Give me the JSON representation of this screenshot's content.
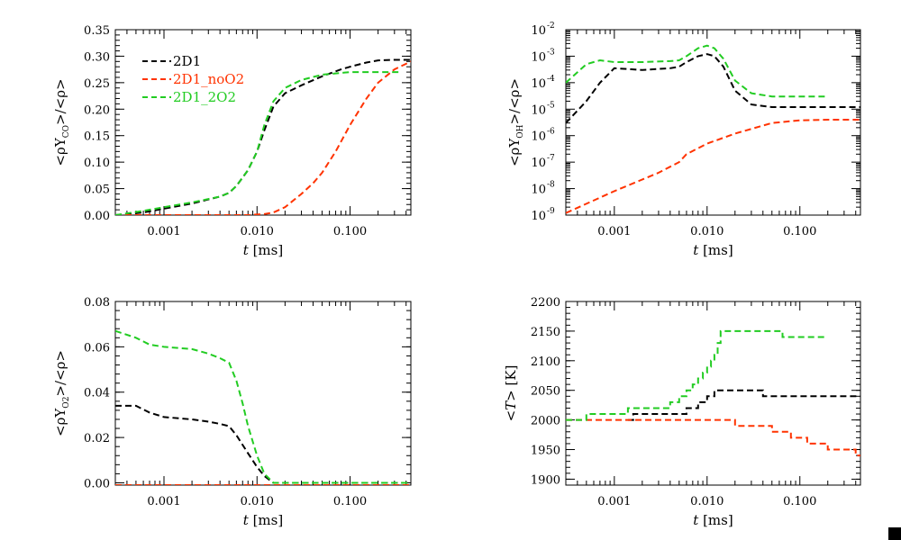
{
  "colors": {
    "2D1": "#000000",
    "2D1_noO2": "#ff3300",
    "2D1_2O2": "#22cc22"
  },
  "chart_data": [
    {
      "type": "line",
      "id": "CO",
      "xscale": "log",
      "yscale": "linear",
      "xlim": [
        0.0003,
        0.45
      ],
      "ylim": [
        0.0,
        0.35
      ],
      "xticks": [
        0.001,
        0.01,
        0.1
      ],
      "xtick_labels": [
        "0.001",
        "0.010",
        "0.100"
      ],
      "yticks": [
        0.0,
        0.05,
        0.1,
        0.15,
        0.2,
        0.25,
        0.3,
        0.35
      ],
      "ytick_labels": [
        "0.00",
        "0.05",
        "0.10",
        "0.15",
        "0.20",
        "0.25",
        "0.30",
        "0.35"
      ],
      "xlabel": {
        "italic": "t",
        "rest": " [ms]"
      },
      "ylabel": {
        "pre": "<ρY",
        "sub": "CO",
        "post": ">/<ρ>"
      },
      "legend": {
        "position": "top-left",
        "entries": [
          "2D1",
          "2D1_noO2",
          "2D1_2O2"
        ]
      },
      "series": [
        {
          "name": "2D1",
          "color": "#000000",
          "x": [
            0.0003,
            0.0006,
            0.001,
            0.002,
            0.004,
            0.005,
            0.006,
            0.008,
            0.01,
            0.012,
            0.015,
            0.02,
            0.03,
            0.05,
            0.08,
            0.1,
            0.15,
            0.2,
            0.3,
            0.45
          ],
          "y": [
            0.0,
            0.005,
            0.012,
            0.022,
            0.035,
            0.042,
            0.055,
            0.085,
            0.12,
            0.16,
            0.205,
            0.23,
            0.245,
            0.262,
            0.275,
            0.28,
            0.288,
            0.292,
            0.293,
            0.293
          ]
        },
        {
          "name": "2D1_noO2",
          "color": "#ff3300",
          "x": [
            0.0003,
            0.001,
            0.003,
            0.008,
            0.012,
            0.015,
            0.02,
            0.03,
            0.04,
            0.05,
            0.07,
            0.1,
            0.15,
            0.2,
            0.3,
            0.45
          ],
          "y": [
            0.0,
            0.0,
            0.0,
            0.0,
            0.002,
            0.005,
            0.015,
            0.04,
            0.06,
            0.08,
            0.12,
            0.17,
            0.22,
            0.25,
            0.275,
            0.29
          ]
        },
        {
          "name": "2D1_2O2",
          "color": "#22cc22",
          "x": [
            0.0003,
            0.0006,
            0.001,
            0.002,
            0.004,
            0.005,
            0.006,
            0.008,
            0.01,
            0.012,
            0.015,
            0.02,
            0.03,
            0.05,
            0.1,
            0.2,
            0.35
          ],
          "y": [
            0.0,
            0.008,
            0.015,
            0.024,
            0.035,
            0.042,
            0.055,
            0.085,
            0.12,
            0.17,
            0.215,
            0.24,
            0.255,
            0.265,
            0.27,
            0.27,
            0.27
          ]
        }
      ]
    },
    {
      "type": "line",
      "id": "OH",
      "xscale": "log",
      "yscale": "log",
      "xlim": [
        0.0003,
        0.45
      ],
      "ylim": [
        1e-09,
        0.01
      ],
      "xticks": [
        0.001,
        0.01,
        0.1
      ],
      "xtick_labels": [
        "0.001",
        "0.010",
        "0.100"
      ],
      "yticks": [
        1e-09,
        1e-08,
        1e-07,
        1e-06,
        1e-05,
        0.0001,
        0.001,
        0.01
      ],
      "ytick_mantissa": [
        "10",
        "10",
        "10",
        "10",
        "10",
        "10",
        "10",
        "10"
      ],
      "ytick_exponents": [
        "-9",
        "-8",
        "-7",
        "-6",
        "-5",
        "-4",
        "-3",
        "-2"
      ],
      "xlabel": {
        "italic": "t",
        "rest": " [ms]"
      },
      "ylabel": {
        "pre": "<ρY",
        "sub": "OH",
        "post": ">/<ρ>"
      },
      "series": [
        {
          "name": "2D1",
          "color": "#000000",
          "x": [
            0.0003,
            0.0005,
            0.0007,
            0.001,
            0.002,
            0.004,
            0.005,
            0.006,
            0.008,
            0.01,
            0.012,
            0.015,
            0.02,
            0.03,
            0.05,
            0.1,
            0.2,
            0.45
          ],
          "y": [
            3e-06,
            2e-05,
            0.0001,
            0.00035,
            0.0003,
            0.00035,
            0.0004,
            0.0006,
            0.001,
            0.0012,
            0.001,
            0.0004,
            5e-05,
            1.5e-05,
            1.2e-05,
            1.2e-05,
            1.2e-05,
            1.2e-05
          ]
        },
        {
          "name": "2D1_noO2",
          "color": "#ff3300",
          "x": [
            0.0003,
            0.001,
            0.003,
            0.005,
            0.006,
            0.01,
            0.02,
            0.05,
            0.1,
            0.2,
            0.45
          ],
          "y": [
            1.2e-09,
            8e-09,
            4e-08,
            1e-07,
            2e-07,
            5e-07,
            1.2e-06,
            3e-06,
            3.8e-06,
            4e-06,
            4e-06
          ]
        },
        {
          "name": "2D1_2O2",
          "color": "#22cc22",
          "x": [
            0.0003,
            0.0005,
            0.0007,
            0.001,
            0.002,
            0.004,
            0.005,
            0.006,
            0.008,
            0.01,
            0.012,
            0.015,
            0.02,
            0.03,
            0.05,
            0.1,
            0.2
          ],
          "y": [
            0.0001,
            0.0005,
            0.0007,
            0.0006,
            0.0006,
            0.00065,
            0.0007,
            0.001,
            0.002,
            0.0025,
            0.002,
            0.0008,
            0.00012,
            4e-05,
            3e-05,
            3e-05,
            3e-05
          ]
        }
      ]
    },
    {
      "type": "line",
      "id": "O2",
      "xscale": "log",
      "yscale": "linear",
      "xlim": [
        0.0003,
        0.45
      ],
      "ylim": [
        -0.001,
        0.08
      ],
      "xticks": [
        0.001,
        0.01,
        0.1
      ],
      "xtick_labels": [
        "0.001",
        "0.010",
        "0.100"
      ],
      "yticks": [
        0.0,
        0.02,
        0.04,
        0.06,
        0.08
      ],
      "ytick_labels": [
        "0.00",
        "0.02",
        "0.04",
        "0.06",
        "0.08"
      ],
      "xlabel": {
        "italic": "t",
        "rest": " [ms]"
      },
      "ylabel": {
        "pre": "<ρY",
        "sub": "O2",
        "post": ">/<ρ>"
      },
      "series": [
        {
          "name": "2D1",
          "color": "#000000",
          "x": [
            0.0003,
            0.0005,
            0.0007,
            0.001,
            0.002,
            0.003,
            0.004,
            0.005,
            0.006,
            0.008,
            0.01,
            0.012,
            0.015,
            0.02,
            0.05,
            0.1,
            0.45
          ],
          "y": [
            0.034,
            0.034,
            0.031,
            0.029,
            0.028,
            0.027,
            0.026,
            0.025,
            0.021,
            0.013,
            0.007,
            0.003,
            0.0,
            0.0,
            0.0,
            0.0,
            0.0
          ]
        },
        {
          "name": "2D1_noO2",
          "color": "#ff3300",
          "x": [
            0.0003,
            0.45
          ],
          "y": [
            -0.001,
            -0.001
          ]
        },
        {
          "name": "2D1_2O2",
          "color": "#22cc22",
          "x": [
            0.0003,
            0.0005,
            0.0007,
            0.001,
            0.002,
            0.003,
            0.004,
            0.005,
            0.006,
            0.007,
            0.008,
            0.01,
            0.012,
            0.015,
            0.02,
            0.05,
            0.1,
            0.45
          ],
          "y": [
            0.067,
            0.064,
            0.061,
            0.06,
            0.059,
            0.057,
            0.055,
            0.053,
            0.045,
            0.035,
            0.025,
            0.012,
            0.004,
            0.0,
            0.0,
            0.0,
            0.0,
            0.0
          ]
        }
      ]
    },
    {
      "type": "line",
      "id": "T",
      "xscale": "log",
      "yscale": "linear",
      "xlim": [
        0.0003,
        0.45
      ],
      "ylim": [
        1890,
        2200
      ],
      "xticks": [
        0.001,
        0.01,
        0.1
      ],
      "xtick_labels": [
        "0.001",
        "0.010",
        "0.100"
      ],
      "yticks": [
        1900,
        1950,
        2000,
        2050,
        2100,
        2150,
        2200
      ],
      "ytick_labels": [
        "1900",
        "1950",
        "2000",
        "2050",
        "2100",
        "2150",
        "2200"
      ],
      "xlabel": {
        "italic": "t",
        "rest": " [ms]"
      },
      "ylabel": {
        "pre": "<",
        "italic": "T",
        "post": "> [K]"
      },
      "series": [
        {
          "name": "2D1",
          "color": "#000000",
          "step": true,
          "x": [
            0.0014,
            0.0016,
            0.005,
            0.006,
            0.008,
            0.01,
            0.012,
            0.035,
            0.04,
            0.45
          ],
          "y": [
            2000,
            2010,
            2010,
            2020,
            2030,
            2040,
            2050,
            2050,
            2040,
            2040
          ]
        },
        {
          "name": "2D1_noO2",
          "color": "#ff3300",
          "step": true,
          "x": [
            0.0003,
            0.015,
            0.02,
            0.03,
            0.05,
            0.08,
            0.12,
            0.2,
            0.35,
            0.4,
            0.45
          ],
          "y": [
            2000,
            2000,
            1990,
            1990,
            1980,
            1970,
            1960,
            1950,
            1950,
            1940,
            1940
          ]
        },
        {
          "name": "2D1_2O2",
          "color": "#22cc22",
          "step": true,
          "x": [
            0.0003,
            0.0005,
            0.0014,
            0.003,
            0.004,
            0.005,
            0.006,
            0.007,
            0.008,
            0.009,
            0.01,
            0.011,
            0.012,
            0.013,
            0.014,
            0.06,
            0.065,
            0.2
          ],
          "y": [
            2000,
            2010,
            2020,
            2020,
            2030,
            2040,
            2050,
            2060,
            2070,
            2080,
            2090,
            2100,
            2110,
            2130,
            2150,
            2150,
            2140,
            2140
          ]
        }
      ]
    }
  ]
}
